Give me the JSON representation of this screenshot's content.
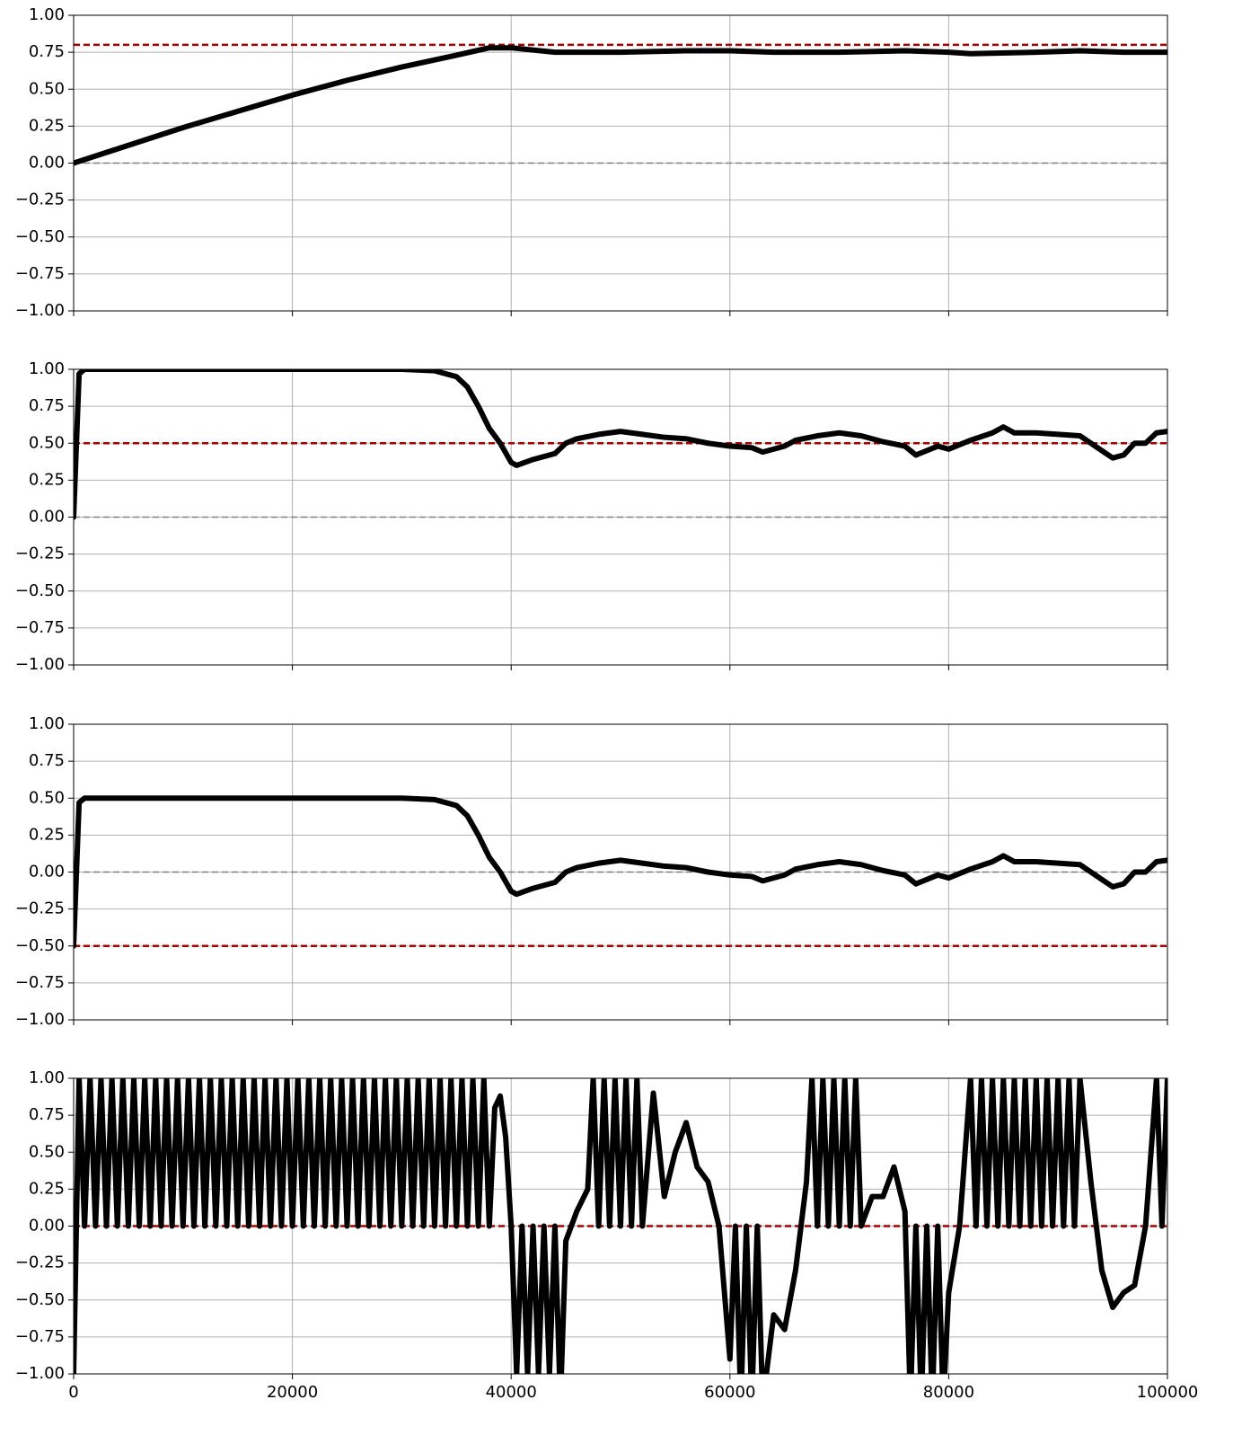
{
  "chart_data": [
    {
      "type": "line",
      "grid": true,
      "xlim": [
        0,
        100000
      ],
      "ylim": [
        -1,
        1
      ],
      "xticks": [
        0,
        20000,
        40000,
        60000,
        80000,
        100000
      ],
      "yticks": [
        {
          "value": -1,
          "label": "−1.00"
        },
        {
          "value": -0.75,
          "label": "−0.75"
        },
        {
          "value": -0.5,
          "label": "−0.50"
        },
        {
          "value": -0.25,
          "label": "−0.25"
        },
        {
          "value": 0,
          "label": "0.00"
        },
        {
          "value": 0.25,
          "label": "0.25"
        },
        {
          "value": 0.5,
          "label": "0.50"
        },
        {
          "value": 0.75,
          "label": "0.75"
        },
        {
          "value": 1,
          "label": "1.00"
        }
      ],
      "ref_lines": [
        {
          "value": 0,
          "color": "#808080"
        },
        {
          "value": 0.8,
          "color": "#a00000"
        }
      ],
      "x": [
        0,
        5000,
        10000,
        15000,
        20000,
        25000,
        30000,
        35000,
        38000,
        40000,
        44000,
        50000,
        56000,
        60000,
        64000,
        70000,
        76000,
        80000,
        82000,
        88000,
        92000,
        96000,
        100000
      ],
      "series": [
        {
          "color": "#000000",
          "values": [
            0,
            0.12,
            0.24,
            0.35,
            0.46,
            0.56,
            0.65,
            0.73,
            0.78,
            0.78,
            0.75,
            0.75,
            0.76,
            0.76,
            0.75,
            0.75,
            0.76,
            0.75,
            0.74,
            0.75,
            0.76,
            0.75,
            0.75
          ]
        }
      ]
    },
    {
      "type": "line",
      "grid": true,
      "xlim": [
        0,
        100000
      ],
      "ylim": [
        -1,
        1
      ],
      "xticks": [
        0,
        20000,
        40000,
        60000,
        80000,
        100000
      ],
      "yticks": [
        {
          "value": -1,
          "label": "−1.00"
        },
        {
          "value": -0.75,
          "label": "−0.75"
        },
        {
          "value": -0.5,
          "label": "−0.50"
        },
        {
          "value": -0.25,
          "label": "−0.25"
        },
        {
          "value": 0,
          "label": "0.00"
        },
        {
          "value": 0.25,
          "label": "0.25"
        },
        {
          "value": 0.5,
          "label": "0.50"
        },
        {
          "value": 0.75,
          "label": "0.75"
        },
        {
          "value": 1,
          "label": "1.00"
        }
      ],
      "ref_lines": [
        {
          "value": 0,
          "color": "#808080"
        },
        {
          "value": 0.5,
          "color": "#a00000"
        }
      ],
      "x": [
        0,
        500,
        1000,
        10000,
        20000,
        30000,
        33000,
        35000,
        36000,
        37000,
        38000,
        39000,
        40000,
        40500,
        42000,
        44000,
        45000,
        46000,
        48000,
        50000,
        52000,
        54000,
        56000,
        58000,
        60000,
        62000,
        63000,
        65000,
        66000,
        68000,
        70000,
        72000,
        74000,
        76000,
        77000,
        78000,
        79000,
        80000,
        82000,
        84000,
        85000,
        86000,
        88000,
        90000,
        92000,
        94000,
        95000,
        96000,
        97000,
        98000,
        99000,
        100000
      ],
      "series": [
        {
          "color": "#000000",
          "values": [
            0,
            0.97,
            1,
            1,
            1,
            1,
            0.99,
            0.95,
            0.88,
            0.75,
            0.6,
            0.5,
            0.37,
            0.35,
            0.39,
            0.43,
            0.5,
            0.53,
            0.56,
            0.58,
            0.56,
            0.54,
            0.53,
            0.5,
            0.48,
            0.47,
            0.44,
            0.48,
            0.52,
            0.55,
            0.57,
            0.55,
            0.51,
            0.48,
            0.42,
            0.45,
            0.48,
            0.46,
            0.52,
            0.57,
            0.61,
            0.57,
            0.57,
            0.56,
            0.55,
            0.45,
            0.4,
            0.42,
            0.5,
            0.5,
            0.57,
            0.58
          ]
        }
      ]
    },
    {
      "type": "line",
      "grid": true,
      "xlim": [
        0,
        100000
      ],
      "ylim": [
        -1,
        1
      ],
      "xticks": [
        0,
        20000,
        40000,
        60000,
        80000,
        100000
      ],
      "yticks": [
        {
          "value": -1,
          "label": "−1.00"
        },
        {
          "value": -0.75,
          "label": "−0.75"
        },
        {
          "value": -0.5,
          "label": "−0.50"
        },
        {
          "value": -0.25,
          "label": "−0.25"
        },
        {
          "value": 0,
          "label": "0.00"
        },
        {
          "value": 0.25,
          "label": "0.25"
        },
        {
          "value": 0.5,
          "label": "0.50"
        },
        {
          "value": 0.75,
          "label": "0.75"
        },
        {
          "value": 1,
          "label": "1.00"
        }
      ],
      "ref_lines": [
        {
          "value": 0,
          "color": "#808080"
        },
        {
          "value": -0.5,
          "color": "#a00000"
        }
      ],
      "x": [
        0,
        500,
        1000,
        10000,
        20000,
        30000,
        33000,
        35000,
        36000,
        37000,
        38000,
        39000,
        40000,
        40500,
        42000,
        44000,
        45000,
        46000,
        48000,
        50000,
        52000,
        54000,
        56000,
        58000,
        60000,
        62000,
        63000,
        65000,
        66000,
        68000,
        70000,
        72000,
        74000,
        76000,
        77000,
        78000,
        79000,
        80000,
        82000,
        84000,
        85000,
        86000,
        88000,
        90000,
        92000,
        94000,
        95000,
        96000,
        97000,
        98000,
        99000,
        100000
      ],
      "series": [
        {
          "color": "#000000",
          "values": [
            -0.5,
            0.47,
            0.5,
            0.5,
            0.5,
            0.5,
            0.49,
            0.45,
            0.38,
            0.25,
            0.1,
            0,
            -0.13,
            -0.15,
            -0.11,
            -0.07,
            0,
            0.03,
            0.06,
            0.08,
            0.06,
            0.04,
            0.03,
            0,
            -0.02,
            -0.03,
            -0.06,
            -0.02,
            0.02,
            0.05,
            0.07,
            0.05,
            0.01,
            -0.02,
            -0.08,
            -0.05,
            -0.02,
            -0.04,
            0.02,
            0.07,
            0.11,
            0.07,
            0.07,
            0.06,
            0.05,
            -0.05,
            -0.1,
            -0.08,
            0,
            0,
            0.07,
            0.08
          ]
        }
      ]
    },
    {
      "type": "line",
      "grid": true,
      "xlim": [
        0,
        100000
      ],
      "ylim": [
        -1,
        1
      ],
      "xticks": [
        0,
        20000,
        40000,
        60000,
        80000,
        100000
      ],
      "yticks": [
        {
          "value": -1,
          "label": "−1.00"
        },
        {
          "value": -0.75,
          "label": "−0.75"
        },
        {
          "value": -0.5,
          "label": "−0.50"
        },
        {
          "value": -0.25,
          "label": "−0.25"
        },
        {
          "value": 0,
          "label": "0.00"
        },
        {
          "value": 0.25,
          "label": "0.25"
        },
        {
          "value": 0.5,
          "label": "0.50"
        },
        {
          "value": 0.75,
          "label": "0.75"
        },
        {
          "value": 1,
          "label": "1.00"
        }
      ],
      "ref_lines": [
        {
          "value": 0,
          "color": "#a00000"
        }
      ],
      "x": [
        0,
        500,
        1000,
        1500,
        2000,
        2500,
        3000,
        3500,
        4000,
        4500,
        5000,
        5500,
        6000,
        6500,
        7000,
        7500,
        8000,
        8500,
        9000,
        9500,
        10000,
        10500,
        11000,
        11500,
        12000,
        12500,
        13000,
        13500,
        14000,
        14500,
        15000,
        15500,
        16000,
        16500,
        17000,
        17500,
        18000,
        18500,
        19000,
        19500,
        20000,
        20500,
        21000,
        21500,
        22000,
        22500,
        23000,
        23500,
        24000,
        24500,
        25000,
        25500,
        26000,
        26500,
        27000,
        27500,
        28000,
        28500,
        29000,
        29500,
        30000,
        30500,
        31000,
        31500,
        32000,
        32500,
        33000,
        33500,
        34000,
        34500,
        35000,
        35500,
        36000,
        36500,
        37000,
        37500,
        38000,
        38500,
        39000,
        39500,
        40000,
        40500,
        41000,
        41500,
        42000,
        42500,
        43000,
        43500,
        44000,
        44500,
        45000,
        46000,
        47000,
        47500,
        48000,
        48500,
        49000,
        49500,
        50000,
        50500,
        51000,
        51500,
        52000,
        53000,
        54000,
        55000,
        56000,
        57000,
        58000,
        59000,
        60000,
        60500,
        61000,
        61500,
        62000,
        62500,
        63000,
        64000,
        65000,
        66000,
        67000,
        67500,
        68000,
        68500,
        69000,
        69500,
        70000,
        70500,
        71000,
        71500,
        72000,
        73000,
        74000,
        75000,
        76000,
        76500,
        77000,
        77500,
        78000,
        78500,
        79000,
        79500,
        80000,
        81000,
        82000,
        82500,
        83000,
        83500,
        84000,
        84500,
        85000,
        85500,
        86000,
        86500,
        87000,
        87500,
        88000,
        88500,
        89000,
        89500,
        90000,
        90500,
        91000,
        91500,
        92000,
        93000,
        94000,
        95000,
        96000,
        97000,
        98000,
        99000,
        99500,
        100000
      ],
      "series": [
        {
          "color": "#000000",
          "values": [
            -1,
            1,
            0,
            1,
            0,
            1,
            0,
            1,
            0,
            1,
            0,
            1,
            0,
            1,
            0,
            1,
            0,
            1,
            0,
            1,
            0,
            1,
            0,
            1,
            0,
            1,
            0,
            1,
            0,
            1,
            0,
            1,
            0,
            1,
            0,
            1,
            0,
            1,
            0,
            1,
            0,
            1,
            0,
            1,
            0,
            1,
            0,
            1,
            0,
            1,
            0,
            1,
            0,
            1,
            0,
            1,
            0,
            1,
            0,
            1,
            0,
            1,
            0,
            1,
            0,
            1,
            0,
            1,
            0,
            1,
            0,
            1,
            0,
            1,
            0,
            1,
            0,
            0.8,
            0.88,
            0.6,
            0,
            -1,
            0,
            -1,
            0,
            -1,
            0,
            -1,
            0,
            -1.2,
            -0.1,
            0.1,
            0.25,
            1,
            0,
            1,
            0,
            1,
            0,
            1,
            0,
            1,
            0,
            0.9,
            0.2,
            0.5,
            0.7,
            0.4,
            0.3,
            0,
            -0.9,
            0,
            -1.2,
            0,
            -1.2,
            0,
            -1.2,
            -0.6,
            -0.7,
            -0.3,
            0.3,
            1,
            0,
            1,
            0,
            1,
            0,
            1,
            0,
            1,
            0,
            0.2,
            0.2,
            0.4,
            0.1,
            -1.2,
            0,
            -1.2,
            0,
            -1.2,
            0,
            -1.2,
            -0.45,
            0,
            1,
            0,
            1,
            0,
            1,
            0,
            1,
            0,
            1,
            0,
            1,
            0,
            1,
            0,
            1,
            0,
            1,
            0,
            1,
            0,
            1,
            0.3,
            -0.3,
            -0.55,
            -0.45,
            -0.4,
            0,
            1,
            0,
            1
          ]
        }
      ]
    }
  ]
}
